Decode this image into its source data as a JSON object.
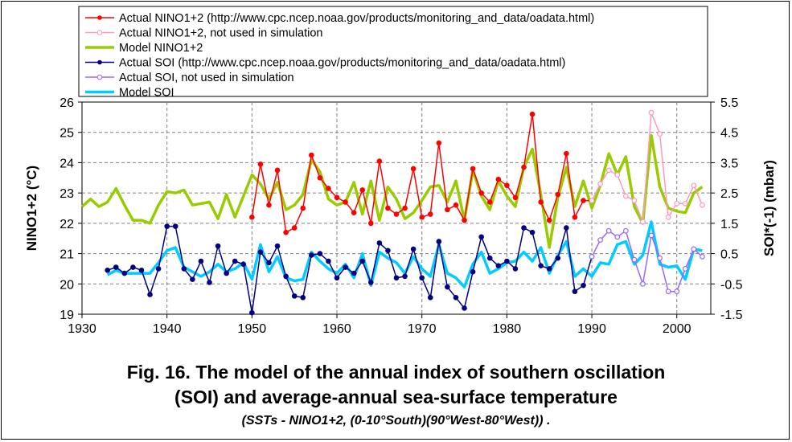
{
  "chart_data": {
    "type": "line",
    "xlabel": "",
    "ylabel_left": "NINO1+2 (°C)",
    "ylabel_right": "SOI*(-1) (mbar)",
    "xlim": [
      1930,
      2004
    ],
    "xticks": [
      1930,
      1940,
      1950,
      1960,
      1970,
      1980,
      1990,
      2000
    ],
    "ylim_left": [
      19,
      26
    ],
    "yticks_left": [
      19,
      20,
      21,
      22,
      23,
      24,
      25,
      26
    ],
    "ylim_right": [
      -1.5,
      5.5
    ],
    "yticks_right": [
      -1.5,
      -0.5,
      0.5,
      1.5,
      2.5,
      3.5,
      4.5,
      5.5
    ],
    "grid": true,
    "legend_position": "top-center",
    "series": [
      {
        "name": "Actual NINO1+2 (http://www.cpc.ncep.noaa.gov/products/monitoring_and_data/oadata.html)",
        "axis": "left",
        "color": "#ff0000",
        "style": "line-marker",
        "x": [
          1950,
          1951,
          1952,
          1953,
          1954,
          1955,
          1956,
          1957,
          1958,
          1959,
          1960,
          1961,
          1962,
          1963,
          1964,
          1965,
          1966,
          1967,
          1968,
          1969,
          1970,
          1971,
          1972,
          1973,
          1974,
          1975,
          1976,
          1977,
          1978,
          1979,
          1980,
          1981,
          1982,
          1983,
          1984,
          1985,
          1986,
          1987,
          1988,
          1989,
          1990
        ],
        "y": [
          22.2,
          23.95,
          22.6,
          23.75,
          21.7,
          21.85,
          22.5,
          24.25,
          23.5,
          23.15,
          22.85,
          22.7,
          22.35,
          23.1,
          22.0,
          24.05,
          22.5,
          22.3,
          22.5,
          23.8,
          22.2,
          22.3,
          24.65,
          22.45,
          22.6,
          22.1,
          23.8,
          23.0,
          22.7,
          23.45,
          23.25,
          22.85,
          23.85,
          25.6,
          22.7,
          22.1,
          22.95,
          24.3,
          22.2,
          22.75,
          22.75
        ]
      },
      {
        "name": "Actual NINO1+2, not used in simulation",
        "axis": "left",
        "color": "#ff99bb",
        "style": "line-hollow",
        "x": [
          1990,
          1991,
          1992,
          1993,
          1994,
          1995,
          1996,
          1997,
          1998,
          1999,
          2000,
          2001,
          2002,
          2003
        ],
        "y": [
          22.75,
          23.3,
          23.75,
          23.6,
          22.9,
          22.75,
          22.05,
          25.65,
          24.95,
          22.2,
          22.65,
          22.65,
          23.25,
          22.6
        ]
      },
      {
        "name": "Model NINO1+2",
        "axis": "left",
        "color": "#99cc00",
        "style": "thick-line",
        "x": [
          1930,
          1931,
          1932,
          1933,
          1934,
          1935,
          1936,
          1937,
          1938,
          1939,
          1940,
          1941,
          1942,
          1943,
          1944,
          1945,
          1946,
          1947,
          1948,
          1949,
          1950,
          1951,
          1952,
          1953,
          1954,
          1955,
          1956,
          1957,
          1958,
          1959,
          1960,
          1961,
          1962,
          1963,
          1964,
          1965,
          1966,
          1967,
          1968,
          1969,
          1970,
          1971,
          1972,
          1973,
          1974,
          1975,
          1976,
          1977,
          1978,
          1979,
          1980,
          1981,
          1982,
          1983,
          1984,
          1985,
          1986,
          1987,
          1988,
          1989,
          1990,
          1991,
          1992,
          1993,
          1994,
          1995,
          1996,
          1997,
          1998,
          1999,
          2000,
          2001,
          2002,
          2003
        ],
        "y": [
          22.55,
          22.8,
          22.55,
          22.7,
          23.15,
          22.6,
          22.1,
          22.1,
          22.0,
          22.6,
          23.05,
          23.0,
          23.1,
          22.6,
          22.65,
          22.7,
          22.15,
          22.95,
          22.2,
          22.9,
          23.6,
          23.3,
          22.8,
          23.35,
          22.45,
          22.6,
          22.95,
          24.1,
          23.7,
          22.8,
          22.6,
          22.7,
          23.35,
          22.3,
          23.4,
          22.1,
          23.2,
          22.8,
          22.15,
          22.35,
          22.75,
          23.2,
          23.25,
          22.7,
          23.4,
          22.1,
          23.75,
          22.9,
          22.45,
          23.4,
          22.9,
          22.55,
          23.85,
          24.45,
          22.95,
          21.2,
          22.85,
          23.85,
          22.55,
          23.4,
          22.5,
          23.25,
          24.3,
          23.6,
          24.2,
          22.55,
          22.0,
          24.9,
          23.2,
          22.5,
          22.4,
          22.35,
          23.0,
          23.2
        ]
      },
      {
        "name": "Actual SOI (http://www.cpc.ncep.noaa.gov/products/monitoring_and_data/oadata.html)",
        "axis": "right",
        "color": "#000080",
        "style": "line-marker",
        "x": [
          1933,
          1934,
          1935,
          1936,
          1937,
          1938,
          1939,
          1940,
          1941,
          1942,
          1943,
          1944,
          1945,
          1946,
          1947,
          1948,
          1949,
          1950,
          1951,
          1952,
          1953,
          1954,
          1955,
          1956,
          1957,
          1958,
          1959,
          1960,
          1961,
          1962,
          1963,
          1964,
          1965,
          1966,
          1967,
          1968,
          1969,
          1970,
          1971,
          1972,
          1973,
          1974,
          1975,
          1976,
          1977,
          1978,
          1979,
          1980,
          1981,
          1982,
          1983,
          1984,
          1985,
          1986,
          1987,
          1988,
          1989,
          1990
        ],
        "y": [
          -0.05,
          0.05,
          -0.15,
          0.05,
          -0.05,
          -0.85,
          0.0,
          1.4,
          1.4,
          0.0,
          -0.35,
          0.25,
          -0.45,
          0.75,
          -0.15,
          0.25,
          0.15,
          -1.45,
          0.55,
          0.2,
          0.75,
          -0.25,
          -0.9,
          -0.95,
          0.45,
          0.5,
          0.25,
          -0.3,
          0.05,
          -0.15,
          0.25,
          -0.45,
          0.85,
          0.6,
          -0.3,
          -0.25,
          0.65,
          -0.3,
          -0.95,
          0.9,
          -0.6,
          -0.95,
          -1.3,
          -0.1,
          1.05,
          0.35,
          0.1,
          0.25,
          0.0,
          1.35,
          1.2,
          0.1,
          0.0,
          0.35,
          1.35,
          -0.75,
          -0.55,
          0.4
        ]
      },
      {
        "name": "Actual SOI, not used in simulation",
        "axis": "right",
        "color": "#9966ff",
        "style": "line-hollow",
        "x": [
          1990,
          1991,
          1992,
          1993,
          1994,
          1995,
          1996,
          1997,
          1998,
          1999,
          2000,
          2001,
          2002,
          2003
        ],
        "y": [
          0.4,
          0.95,
          1.25,
          1.05,
          1.25,
          0.3,
          -0.5,
          1.1,
          0.35,
          -0.75,
          -0.75,
          0.0,
          0.65,
          0.4
        ]
      },
      {
        "name": "Model SOI",
        "axis": "right",
        "color": "#00ccff",
        "style": "thick-line",
        "x": [
          1933,
          1934,
          1935,
          1936,
          1937,
          1938,
          1939,
          1940,
          1941,
          1942,
          1943,
          1944,
          1945,
          1946,
          1947,
          1948,
          1949,
          1950,
          1951,
          1952,
          1953,
          1954,
          1955,
          1956,
          1957,
          1958,
          1959,
          1960,
          1961,
          1962,
          1963,
          1964,
          1965,
          1966,
          1967,
          1968,
          1969,
          1970,
          1971,
          1972,
          1973,
          1974,
          1975,
          1976,
          1977,
          1978,
          1979,
          1980,
          1981,
          1982,
          1983,
          1984,
          1985,
          1986,
          1987,
          1988,
          1989,
          1990,
          1991,
          1992,
          1993,
          1994,
          1995,
          1996,
          1997,
          1998,
          1999,
          2000,
          2001,
          2002,
          2003
        ],
        "y": [
          -0.2,
          -0.05,
          -0.15,
          -0.15,
          -0.15,
          -0.15,
          0.2,
          0.6,
          0.7,
          0.05,
          -0.1,
          -0.25,
          -0.1,
          0.15,
          -0.1,
          0.0,
          0.2,
          -0.35,
          0.8,
          -0.1,
          0.4,
          -0.3,
          -0.4,
          -0.35,
          0.55,
          0.25,
          0.0,
          -0.15,
          0.15,
          -0.3,
          0.5,
          -0.55,
          0.55,
          0.35,
          0.2,
          -0.15,
          0.4,
          0.0,
          -0.25,
          0.8,
          -0.15,
          -0.3,
          -0.6,
          0.15,
          0.55,
          -0.15,
          0.0,
          0.2,
          0.25,
          0.55,
          0.25,
          0.7,
          -0.15,
          0.45,
          0.9,
          -0.25,
          0.0,
          -0.25,
          0.2,
          0.15,
          0.8,
          0.9,
          0.15,
          0.45,
          1.55,
          0.15,
          0.05,
          0.1,
          -0.35,
          0.65,
          0.6
        ]
      }
    ]
  },
  "caption": {
    "line1": "Fig. 16. The model of the annual index of southern oscillation",
    "line2": "(SOI) and average-annual sea-surface temperature",
    "line3": "(SSTs - NINO1+2, (0-10°South)(90°West-80°West)) ."
  }
}
